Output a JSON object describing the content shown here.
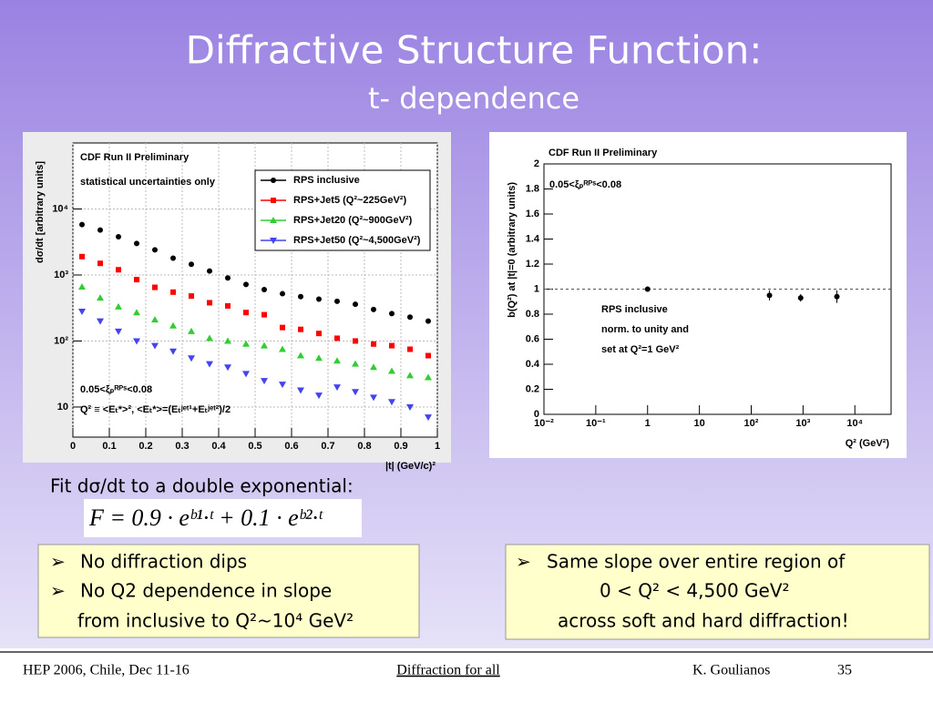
{
  "slide": {
    "title": "Diffractive Structure Function:",
    "subtitle": "t- dependence",
    "fit_text": "Fit dσ/dt to a double exponential:",
    "formula": "F = 0.9 · eᵇ¹·ᵗ + 0.1 · eᵇ²·ᵗ",
    "left_box": [
      "No diffraction dips",
      "No Q2 dependence in slope",
      "from inclusive to Q²~10⁴ GeV²"
    ],
    "right_box": [
      "Same slope over entire region of",
      "0 < Q² < 4,500 GeV²",
      "across soft and hard diffraction!"
    ],
    "footer": {
      "left": "HEP 2006, Chile, Dec 11-16",
      "center": "Diffraction for all",
      "author": "K. Goulianos",
      "page": "35"
    }
  },
  "chart_data": [
    {
      "type": "scatter",
      "title": "CDF Run II Preliminary",
      "annotations": [
        "statistical uncertainties only",
        "0.05<ξₚᴿᴾˢ<0.08",
        "Q² ≡ <Eₜ*>², <Eₜ*>=(Eₜʲᵉᵗ¹+Eₜʲᵉᵗ²)/2"
      ],
      "xlabel": "|t| (GeV/c)²",
      "ylabel": "dσ/dt [arbitrary units]",
      "x": [
        0.025,
        0.075,
        0.125,
        0.175,
        0.225,
        0.275,
        0.325,
        0.375,
        0.425,
        0.475,
        0.525,
        0.575,
        0.625,
        0.675,
        0.725,
        0.775,
        0.825,
        0.875,
        0.925,
        0.975
      ],
      "xlim": [
        0,
        1
      ],
      "xticks": [
        0,
        0.1,
        0.2,
        0.3,
        0.4,
        0.5,
        0.6,
        0.7,
        0.8,
        0.9,
        1
      ],
      "ylim": [
        3.5,
        100000
      ],
      "ylog": true,
      "yticks": [
        10,
        {
          "value": 100,
          "label": "10²"
        },
        {
          "value": 1000,
          "label": "10³"
        },
        {
          "value": 10000,
          "label": "10⁴"
        }
      ],
      "grid": true,
      "legend": "upper right",
      "series": [
        {
          "name": "RPS inclusive",
          "color": "#000000",
          "marker": "circle",
          "values": [
            5800,
            4800,
            3800,
            3000,
            2400,
            1800,
            1450,
            1150,
            900,
            720,
            600,
            520,
            470,
            430,
            400,
            360,
            300,
            260,
            230,
            200
          ]
        },
        {
          "name": "RPS+Jet5 (Q²~225GeV²)",
          "color": "#ff0000",
          "marker": "square",
          "values": [
            1900,
            1500,
            1200,
            850,
            650,
            550,
            480,
            380,
            340,
            270,
            250,
            160,
            150,
            130,
            110,
            100,
            90,
            85,
            75,
            60
          ]
        },
        {
          "name": "RPS+Jet20 (Q²~900GeV²)",
          "color": "#33cc33",
          "marker": "triangle-up",
          "values": [
            660,
            450,
            330,
            270,
            210,
            170,
            140,
            110,
            100,
            90,
            85,
            75,
            60,
            55,
            50,
            45,
            40,
            35,
            30,
            28
          ]
        },
        {
          "name": "RPS+Jet50 (Q²~4,500GeV²)",
          "color": "#4444ee",
          "marker": "triangle-down",
          "values": [
            280,
            200,
            140,
            100,
            85,
            70,
            55,
            45,
            40,
            32,
            25,
            22,
            18,
            15,
            20,
            17,
            14,
            12,
            10,
            7
          ]
        }
      ]
    },
    {
      "type": "scatter",
      "title": "CDF Run II Preliminary",
      "annotations": [
        "0.05<ξₚᴿᴾˢ<0.08",
        "RPS inclusive",
        "norm. to unity and",
        "set at Q²=1 GeV²"
      ],
      "xlabel": "Q² (GeV²)",
      "ylabel": "b(Q²) at |t|=0 (arbitrary units)",
      "x": [
        1,
        225,
        900,
        4500
      ],
      "xlim": [
        0.01,
        50000
      ],
      "xlog": true,
      "xticks": [
        {
          "value": 0.01,
          "label": "10⁻²"
        },
        {
          "value": 0.1,
          "label": "10⁻¹"
        },
        1,
        10,
        {
          "value": 100,
          "label": "10²"
        },
        {
          "value": 1000,
          "label": "10³"
        },
        {
          "value": 10000,
          "label": "10⁴"
        }
      ],
      "ylim": [
        0,
        2
      ],
      "yticks": [
        0,
        0.2,
        0.4,
        0.6,
        0.8,
        1,
        1.2,
        1.4,
        1.6,
        1.8,
        2
      ],
      "reference_line": 1,
      "grid": false,
      "series": [
        {
          "color": "#000000",
          "marker": "circle",
          "values": [
            1,
            0.95,
            0.93,
            0.94
          ],
          "errors": [
            0,
            0.04,
            0.03,
            0.05
          ]
        }
      ]
    }
  ]
}
